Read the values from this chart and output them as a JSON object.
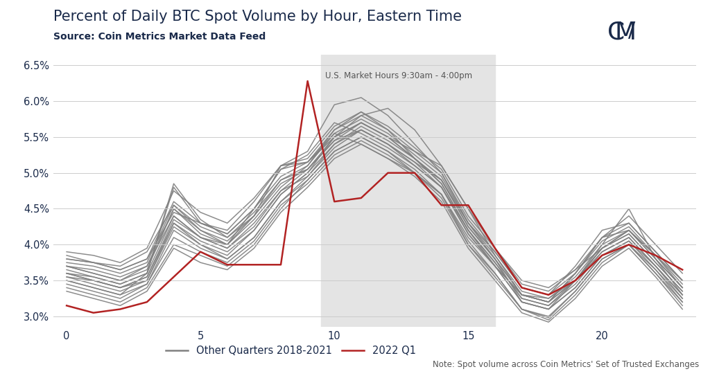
{
  "title": "Percent of Daily BTC Spot Volume by Hour, Eastern Time",
  "subtitle": "Source: Coin Metrics Market Data Feed",
  "market_hours_label": "U.S. Market Hours 9:30am - 4:00pm",
  "market_hours_start": 9.5,
  "market_hours_end": 16,
  "note": "Note: Spot volume across Coin Metrics' Set of Trusted Exchanges",
  "ylim": [
    2.85,
    6.65
  ],
  "xlim": [
    -0.5,
    23.5
  ],
  "yticks": [
    3.0,
    3.5,
    4.0,
    4.5,
    5.0,
    5.5,
    6.0,
    6.5
  ],
  "xticks": [
    0,
    5,
    10,
    15,
    20
  ],
  "red_line": [
    3.15,
    3.05,
    3.1,
    3.2,
    3.55,
    3.9,
    3.72,
    3.72,
    3.72,
    6.28,
    4.6,
    4.65,
    5.0,
    5.0,
    4.55,
    4.55,
    3.95,
    3.4,
    3.3,
    3.5,
    3.85,
    4.0,
    3.85,
    3.65
  ],
  "gray_lines": [
    [
      3.65,
      3.55,
      3.45,
      3.6,
      4.85,
      4.35,
      4.1,
      4.4,
      5.1,
      5.15,
      5.5,
      5.8,
      5.9,
      5.6,
      5.1,
      4.5,
      3.95,
      3.5,
      3.4,
      3.65,
      3.95,
      4.2,
      3.85,
      3.5
    ],
    [
      3.7,
      3.6,
      3.5,
      3.7,
      4.4,
      4.1,
      4.0,
      4.5,
      5.05,
      5.25,
      5.7,
      5.55,
      5.35,
      5.1,
      4.8,
      4.2,
      3.7,
      3.3,
      3.2,
      3.6,
      4.1,
      4.4,
      4.0,
      3.6
    ],
    [
      3.5,
      3.4,
      3.3,
      3.6,
      4.8,
      4.3,
      4.2,
      4.6,
      5.1,
      5.3,
      5.95,
      6.05,
      5.8,
      5.4,
      5.0,
      4.3,
      3.8,
      3.2,
      3.1,
      3.5,
      4.0,
      4.5,
      3.8,
      3.3
    ],
    [
      3.8,
      3.75,
      3.7,
      3.9,
      4.55,
      4.2,
      4.0,
      4.4,
      4.9,
      5.05,
      5.45,
      5.6,
      5.4,
      5.15,
      4.9,
      4.3,
      3.9,
      3.4,
      3.3,
      3.7,
      4.2,
      4.3,
      3.9,
      3.5
    ],
    [
      3.6,
      3.5,
      3.4,
      3.5,
      4.3,
      4.0,
      3.85,
      4.2,
      4.7,
      5.0,
      5.5,
      5.7,
      5.5,
      5.3,
      5.1,
      4.5,
      3.85,
      3.3,
      3.25,
      3.5,
      3.9,
      4.1,
      3.7,
      3.3
    ],
    [
      3.7,
      3.6,
      3.5,
      3.65,
      4.5,
      4.15,
      4.0,
      4.35,
      4.8,
      5.1,
      5.6,
      5.85,
      5.6,
      5.2,
      4.85,
      4.2,
      3.75,
      3.25,
      3.15,
      3.5,
      3.95,
      4.2,
      3.85,
      3.4
    ],
    [
      3.4,
      3.3,
      3.2,
      3.4,
      4.0,
      3.85,
      3.7,
      4.0,
      4.5,
      4.9,
      5.3,
      5.5,
      5.3,
      5.0,
      4.7,
      4.0,
      3.6,
      3.1,
      2.98,
      3.35,
      3.8,
      4.0,
      3.65,
      3.2
    ],
    [
      3.85,
      3.75,
      3.65,
      3.8,
      4.45,
      4.3,
      4.15,
      4.5,
      5.05,
      5.15,
      5.55,
      5.4,
      5.2,
      5.0,
      4.7,
      4.1,
      3.7,
      3.3,
      3.2,
      3.6,
      4.1,
      4.2,
      3.8,
      3.4
    ],
    [
      3.6,
      3.55,
      3.45,
      3.6,
      4.4,
      4.1,
      3.95,
      4.3,
      4.75,
      5.05,
      5.45,
      5.7,
      5.5,
      5.2,
      4.9,
      4.25,
      3.8,
      3.3,
      3.2,
      3.5,
      3.95,
      4.15,
      3.75,
      3.35
    ],
    [
      3.55,
      3.45,
      3.35,
      3.5,
      4.25,
      4.0,
      3.8,
      4.1,
      4.6,
      4.95,
      5.35,
      5.6,
      5.4,
      5.15,
      4.8,
      4.15,
      3.7,
      3.2,
      3.1,
      3.4,
      3.85,
      4.05,
      3.7,
      3.25
    ],
    [
      3.75,
      3.7,
      3.6,
      3.75,
      4.55,
      4.25,
      4.1,
      4.45,
      4.9,
      5.1,
      5.55,
      5.75,
      5.55,
      5.25,
      4.95,
      4.3,
      3.85,
      3.35,
      3.25,
      3.55,
      4.0,
      4.2,
      3.8,
      3.4
    ],
    [
      3.45,
      3.35,
      3.25,
      3.45,
      4.1,
      3.9,
      3.75,
      4.05,
      4.55,
      4.85,
      5.25,
      5.45,
      5.25,
      5.0,
      4.65,
      4.0,
      3.55,
      3.1,
      2.95,
      3.3,
      3.75,
      4.0,
      3.6,
      3.15
    ],
    [
      3.8,
      3.75,
      3.65,
      3.8,
      4.6,
      4.3,
      4.15,
      4.5,
      4.95,
      5.15,
      5.6,
      5.8,
      5.6,
      5.3,
      5.0,
      4.35,
      3.9,
      3.4,
      3.3,
      3.6,
      4.05,
      4.25,
      3.85,
      3.45
    ],
    [
      3.6,
      3.5,
      3.4,
      3.55,
      4.3,
      4.05,
      3.9,
      4.2,
      4.7,
      5.0,
      5.4,
      5.65,
      5.45,
      5.2,
      4.85,
      4.2,
      3.75,
      3.25,
      3.15,
      3.45,
      3.9,
      4.1,
      3.7,
      3.3
    ],
    [
      3.7,
      3.65,
      3.55,
      3.7,
      4.5,
      4.2,
      4.05,
      4.4,
      4.85,
      5.05,
      5.5,
      5.7,
      5.5,
      5.2,
      4.9,
      4.25,
      3.8,
      3.3,
      3.2,
      3.5,
      3.95,
      4.15,
      3.75,
      3.35
    ],
    [
      3.55,
      3.5,
      3.4,
      3.55,
      4.35,
      4.1,
      3.95,
      4.25,
      4.75,
      4.95,
      5.4,
      5.6,
      5.4,
      5.1,
      4.8,
      4.15,
      3.7,
      3.2,
      3.1,
      3.4,
      3.85,
      4.05,
      3.65,
      3.25
    ],
    [
      3.35,
      3.25,
      3.15,
      3.35,
      3.95,
      3.75,
      3.65,
      3.95,
      4.45,
      4.8,
      5.2,
      5.4,
      5.2,
      4.95,
      4.6,
      3.95,
      3.5,
      3.05,
      2.92,
      3.25,
      3.7,
      3.95,
      3.55,
      3.1
    ],
    [
      3.9,
      3.85,
      3.75,
      3.95,
      4.75,
      4.45,
      4.3,
      4.65,
      5.1,
      5.2,
      5.65,
      5.85,
      5.65,
      5.35,
      5.05,
      4.4,
      3.95,
      3.45,
      3.35,
      3.65,
      4.1,
      4.3,
      3.9,
      3.5
    ],
    [
      3.5,
      3.4,
      3.3,
      3.45,
      4.2,
      3.95,
      3.8,
      4.1,
      4.6,
      4.9,
      5.3,
      5.5,
      5.3,
      5.05,
      4.7,
      4.05,
      3.6,
      3.1,
      3.0,
      3.35,
      3.8,
      4.0,
      3.6,
      3.2
    ]
  ],
  "red_color": "#b22222",
  "gray_color": "#808080",
  "background_color": "#ffffff",
  "shade_color": "#e4e4e4",
  "title_color": "#1a2a4a",
  "grid_color": "#cccccc",
  "title_fontsize": 15,
  "subtitle_fontsize": 10,
  "tick_fontsize": 10.5,
  "legend_fontsize": 10.5,
  "note_fontsize": 8.5
}
